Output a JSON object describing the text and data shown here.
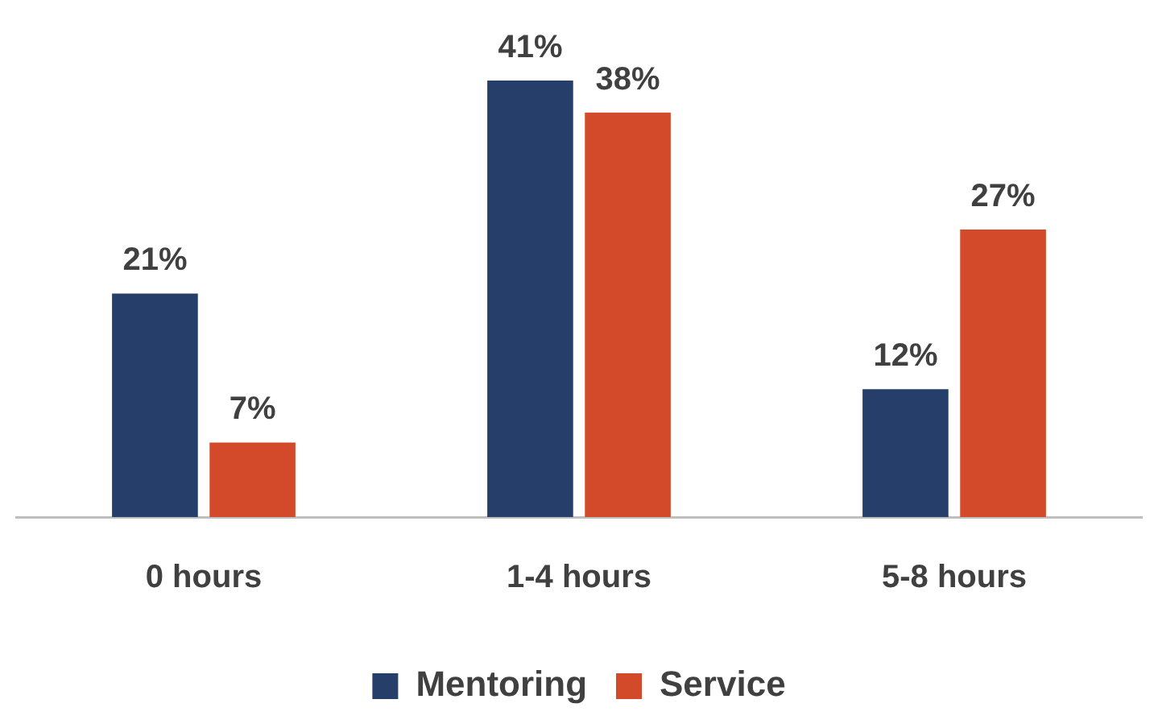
{
  "chart_data": {
    "type": "bar",
    "categories": [
      "0 hours",
      "1-4 hours",
      "5-8 hours"
    ],
    "series": [
      {
        "name": "Mentoring",
        "color": "#253f6a",
        "values": [
          21,
          41,
          12
        ],
        "value_labels": [
          "21%",
          "41%",
          "12%"
        ]
      },
      {
        "name": "Service",
        "color": "#d24a2a",
        "values": [
          7,
          38,
          27
        ],
        "value_labels": [
          "7%",
          "38%",
          "27%"
        ]
      }
    ],
    "legend": "bottom",
    "grid": false
  }
}
